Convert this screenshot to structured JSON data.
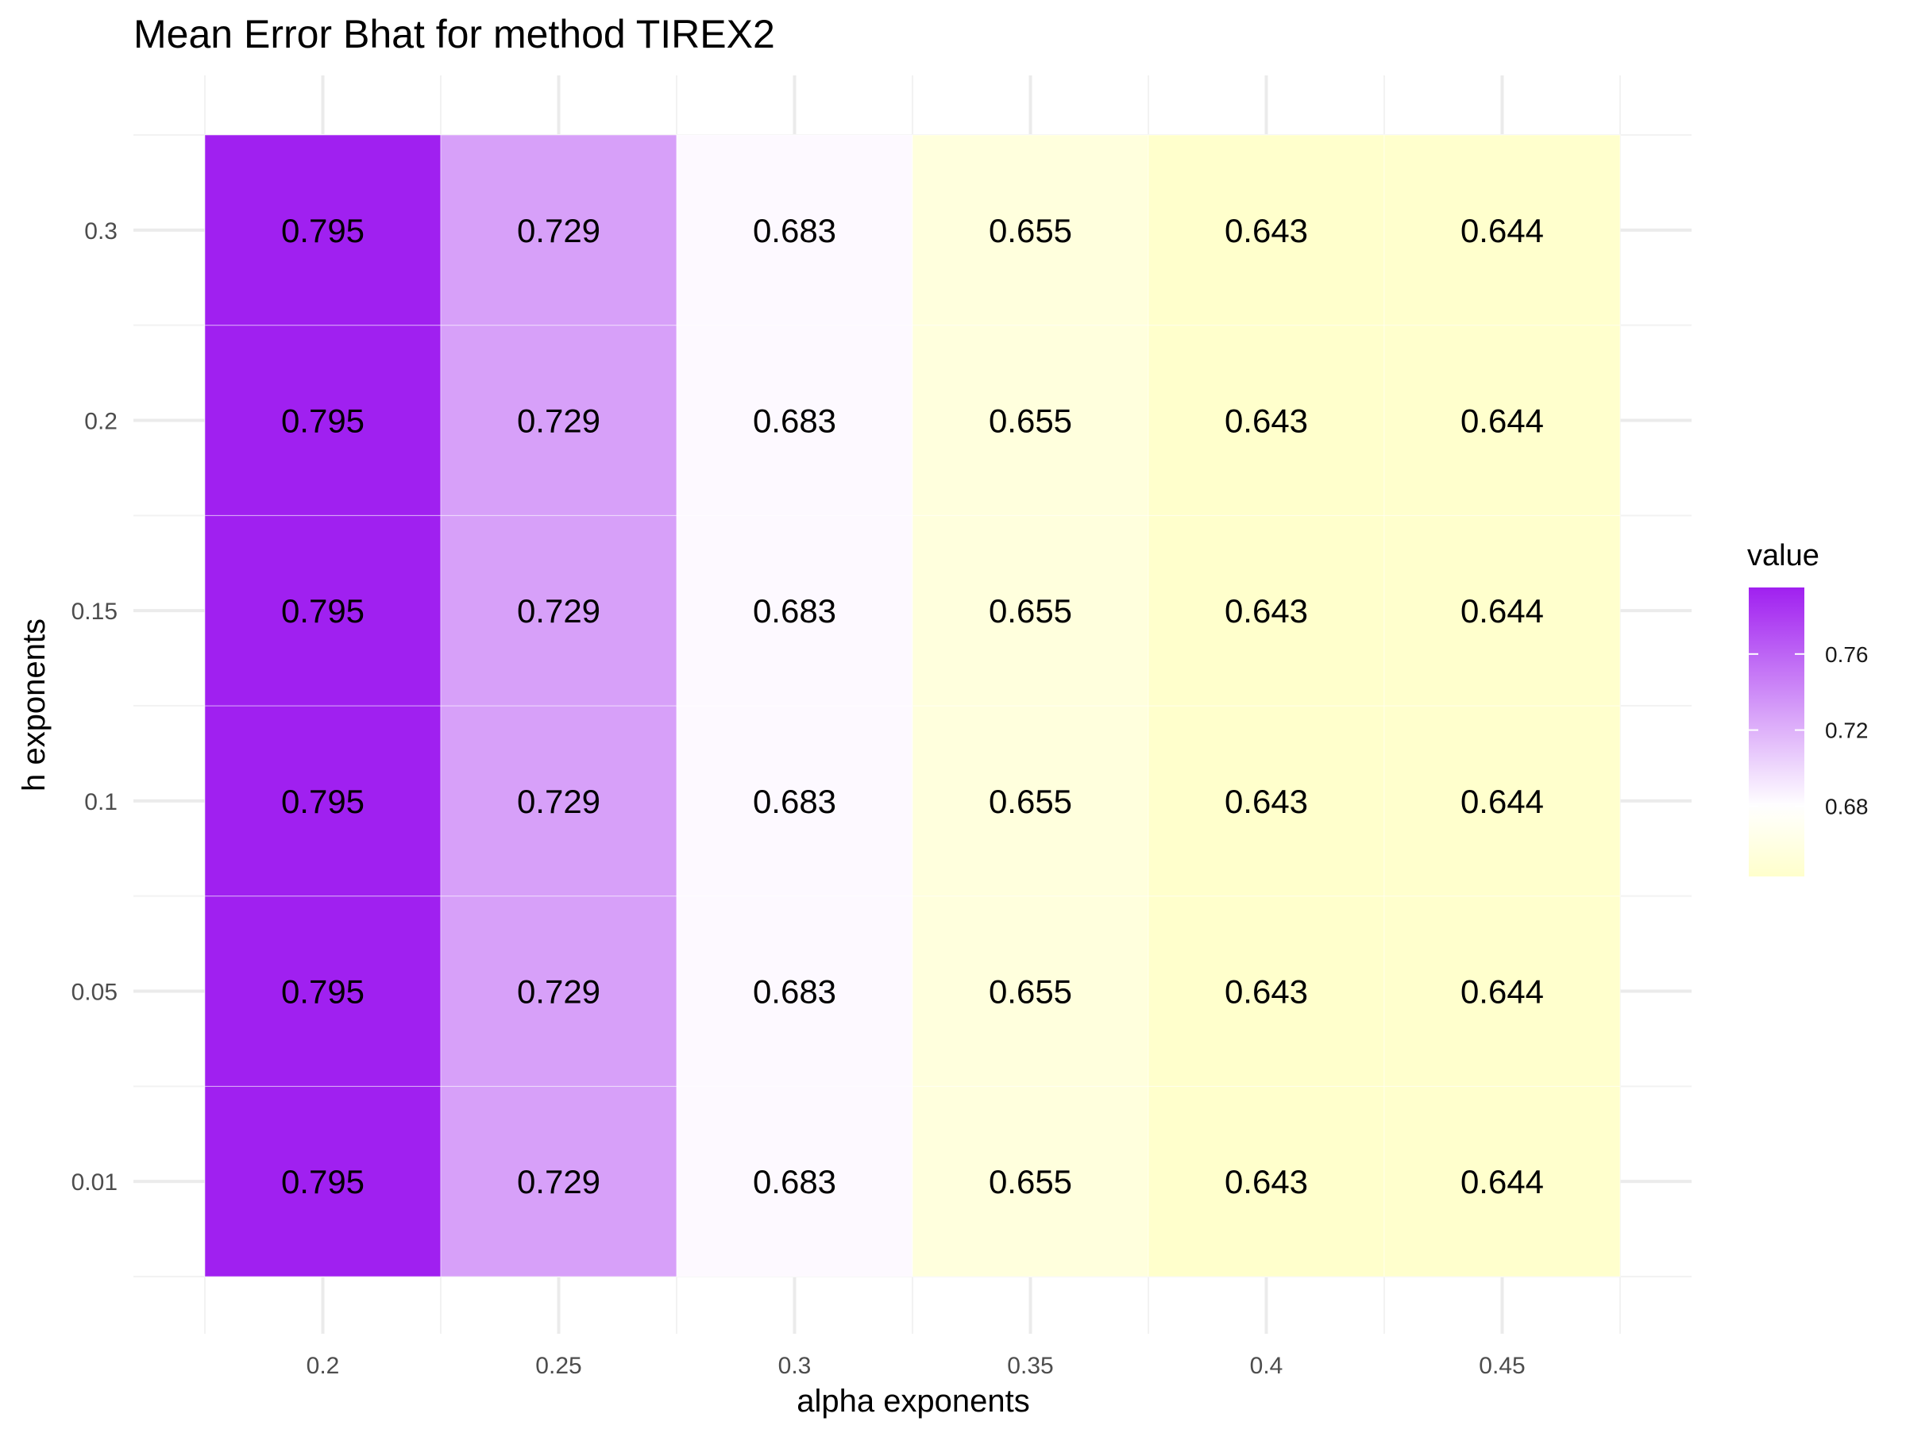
{
  "chart_data": {
    "type": "heatmap",
    "title": "Mean Error Bhat for method TIREX2",
    "xlabel": "alpha exponents",
    "ylabel": "h exponents",
    "x_categories": [
      "0.2",
      "0.25",
      "0.3",
      "0.35",
      "0.4",
      "0.45"
    ],
    "y_categories": [
      "0.01",
      "0.05",
      "0.1",
      "0.15",
      "0.2",
      "0.3"
    ],
    "values": [
      [
        0.795,
        0.729,
        0.683,
        0.655,
        0.643,
        0.644
      ],
      [
        0.795,
        0.729,
        0.683,
        0.655,
        0.643,
        0.644
      ],
      [
        0.795,
        0.729,
        0.683,
        0.655,
        0.643,
        0.644
      ],
      [
        0.795,
        0.729,
        0.683,
        0.655,
        0.643,
        0.644
      ],
      [
        0.795,
        0.729,
        0.683,
        0.655,
        0.643,
        0.644
      ],
      [
        0.795,
        0.729,
        0.683,
        0.655,
        0.643,
        0.644
      ]
    ],
    "value_labels": [
      "0.795",
      "0.729",
      "0.683",
      "0.655",
      "0.643",
      "0.644"
    ],
    "legend": {
      "title": "value",
      "ticks": [
        0.68,
        0.72,
        0.76
      ],
      "tick_labels": [
        "0.68",
        "0.72",
        "0.76"
      ],
      "range": [
        0.643,
        0.795
      ],
      "midpoint": 0.68,
      "low_color": "#ffffcc",
      "mid_color": "#ffffff",
      "high_color": "#a020f0",
      "placement": "right"
    },
    "grid": true
  }
}
